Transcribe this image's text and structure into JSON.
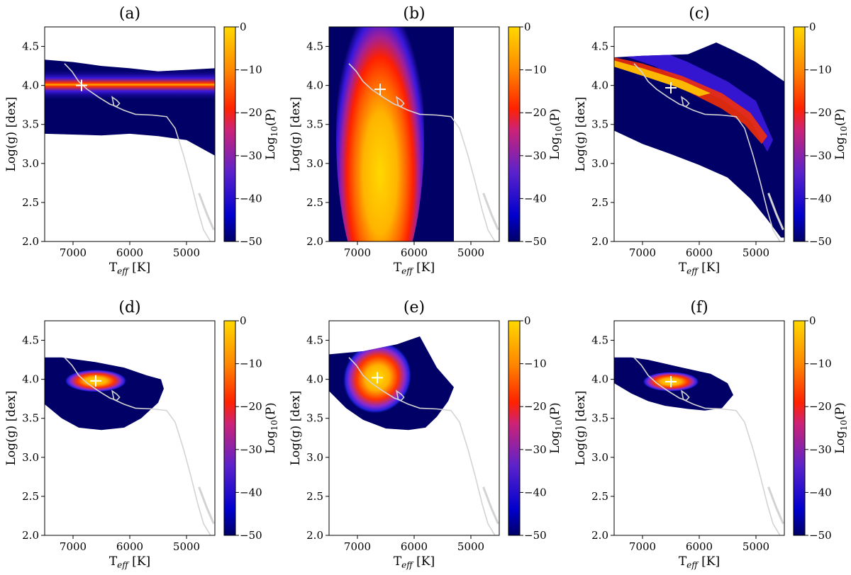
{
  "colorbar": {
    "label": "Log",
    "label_sub": "10",
    "label_tail": "(P)",
    "ticks": [
      "0",
      "−10",
      "−20",
      "−30",
      "−40",
      "−50"
    ],
    "range": [
      -50,
      0
    ],
    "colors": [
      "#000066",
      "#0000cc",
      "#6a1fd0",
      "#cc1f6a",
      "#ff2200",
      "#ff8800",
      "#ffd000"
    ]
  },
  "axes": {
    "xlabel_main": "T",
    "xlabel_sub": "eff",
    "xlabel_tail": " [K]",
    "ylabel": "Log(g) [dex]",
    "xticks": [
      "7000",
      "6000",
      "5000"
    ],
    "yticks": [
      "2.0",
      "2.5",
      "3.0",
      "3.5",
      "4.0",
      "4.5"
    ],
    "xlim": [
      7500,
      4500
    ],
    "ylim": [
      4.75,
      2.0
    ]
  },
  "chart_data": [
    {
      "type": "heatmap",
      "title": "(a)",
      "marker": {
        "teff": 6850,
        "logg": 4.0
      },
      "region_color": "#000066",
      "peak_color": "#ffb000",
      "description_values": {
        "teff_range": [
          7500,
          4500
        ],
        "logg_band": [
          3.4,
          4.3
        ],
        "peak_logg": 4.0
      }
    },
    {
      "type": "heatmap",
      "title": "(b)",
      "marker": {
        "teff": 6600,
        "logg": 3.95
      },
      "region_color": "#000066",
      "peak_color": "#ffd000",
      "description_values": {
        "teff_range": [
          7500,
          5300
        ],
        "logg_band": [
          2.0,
          4.75
        ],
        "peak_logg": 3.95
      }
    },
    {
      "type": "heatmap",
      "title": "(c)",
      "marker": {
        "teff": 6500,
        "logg": 3.97
      },
      "region_color": "#000066",
      "peak_color": "#ffb000",
      "description_values": {
        "teff_range": [
          7500,
          4500
        ],
        "logg_band": [
          2.05,
          4.55
        ],
        "peak_logg": 4.0
      }
    },
    {
      "type": "heatmap",
      "title": "(d)",
      "marker": {
        "teff": 6600,
        "logg": 3.98
      },
      "region_color": "#000066",
      "peak_color": "#ffd000",
      "description_values": {
        "teff_range": [
          7500,
          5400
        ],
        "logg_band": [
          3.35,
          4.28
        ],
        "peak_logg": 3.98
      }
    },
    {
      "type": "heatmap",
      "title": "(e)",
      "marker": {
        "teff": 6650,
        "logg": 4.02
      },
      "region_color": "#000066",
      "peak_color": "#ffd000",
      "description_values": {
        "teff_range": [
          7500,
          5300
        ],
        "logg_band": [
          3.35,
          4.6
        ],
        "peak_logg": 4.02
      }
    },
    {
      "type": "heatmap",
      "title": "(f)",
      "marker": {
        "teff": 6500,
        "logg": 3.97
      },
      "region_color": "#000066",
      "peak_color": "#ffd000",
      "description_values": {
        "teff_range": [
          7500,
          5400
        ],
        "logg_band": [
          3.55,
          4.28
        ],
        "peak_logg": 3.97
      }
    }
  ],
  "track": {
    "color": "#d3d3d3",
    "points": [
      [
        7150,
        4.28
      ],
      [
        7020,
        4.18
      ],
      [
        6900,
        4.05
      ],
      [
        6750,
        3.95
      ],
      [
        6550,
        3.85
      ],
      [
        6350,
        3.76
      ],
      [
        6230,
        3.73
      ],
      [
        6180,
        3.77
      ],
      [
        6230,
        3.81
      ],
      [
        6310,
        3.85
      ],
      [
        6280,
        3.74
      ],
      [
        6100,
        3.68
      ],
      [
        5900,
        3.63
      ],
      [
        5600,
        3.62
      ],
      [
        5350,
        3.6
      ],
      [
        5200,
        3.45
      ],
      [
        5050,
        3.1
      ],
      [
        4920,
        2.75
      ],
      [
        4800,
        2.4
      ],
      [
        4700,
        2.15
      ],
      [
        4560,
        1.98
      ]
    ],
    "branch": [
      [
        4780,
        2.62
      ],
      [
        4640,
        2.35
      ],
      [
        4520,
        2.15
      ]
    ]
  }
}
